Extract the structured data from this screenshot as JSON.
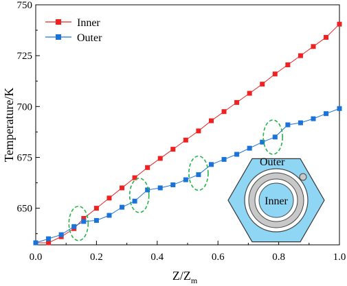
{
  "chart_data": {
    "type": "line",
    "xlabel": "Z/Z",
    "xlabel_sub": "m",
    "ylabel": "Temperature/K",
    "xlim": [
      0.0,
      1.0
    ],
    "ylim": [
      632.0,
      750.0
    ],
    "x_ticks": [
      0.0,
      0.2,
      0.4,
      0.6,
      0.8,
      1.0
    ],
    "x_tick_labels": [
      "0.0",
      "0.2",
      "0.4",
      "0.6",
      "0.8",
      "1.0"
    ],
    "y_ticks": [
      650,
      675,
      700,
      725,
      750
    ],
    "y_tick_labels": [
      "650",
      "675",
      "700",
      "725",
      "750"
    ],
    "legend_position": "top-left",
    "series": [
      {
        "name": "Inner",
        "color": "#ee2222",
        "marker": "square",
        "x": [
          0.0,
          0.042,
          0.084,
          0.126,
          0.158,
          0.2,
          0.242,
          0.284,
          0.326,
          0.368,
          0.41,
          0.452,
          0.494,
          0.536,
          0.578,
          0.62,
          0.662,
          0.704,
          0.746,
          0.788,
          0.83,
          0.872,
          0.914,
          0.956,
          1.0
        ],
        "y": [
          633.0,
          633.0,
          636.0,
          640.0,
          645.0,
          650.0,
          655.0,
          660.0,
          665.0,
          670.0,
          674.5,
          679.0,
          683.5,
          688.0,
          693.0,
          697.5,
          702.0,
          706.5,
          711.0,
          716.0,
          720.5,
          725.0,
          729.5,
          734.0,
          740.5
        ]
      },
      {
        "name": "Outer",
        "color": "#1a73d9",
        "marker": "square",
        "x": [
          0.0,
          0.042,
          0.084,
          0.126,
          0.158,
          0.2,
          0.242,
          0.284,
          0.326,
          0.368,
          0.41,
          0.452,
          0.494,
          0.536,
          0.578,
          0.62,
          0.662,
          0.704,
          0.746,
          0.788,
          0.83,
          0.872,
          0.914,
          0.956,
          1.0
        ],
        "y": [
          633.0,
          635.0,
          637.0,
          641.0,
          643.5,
          644.0,
          646.5,
          650.5,
          653.5,
          659.0,
          660.0,
          661.5,
          664.0,
          666.5,
          671.5,
          674.0,
          676.5,
          679.5,
          682.5,
          685.0,
          691.0,
          692.0,
          694.0,
          696.5,
          699.0
        ]
      }
    ],
    "annotations": {
      "highlighted_x": [
        0.15,
        0.35,
        0.545,
        0.79
      ],
      "note": "dashed green ellipses around Outer series steps"
    }
  },
  "inset": {
    "outer_label": "Outer",
    "inner_label": "Inner",
    "hex_fill": "#8fd6f5",
    "ring_fill": "#c8c8c8"
  },
  "colors": {
    "ellipse": "#27b24a",
    "axis": "#000000"
  }
}
